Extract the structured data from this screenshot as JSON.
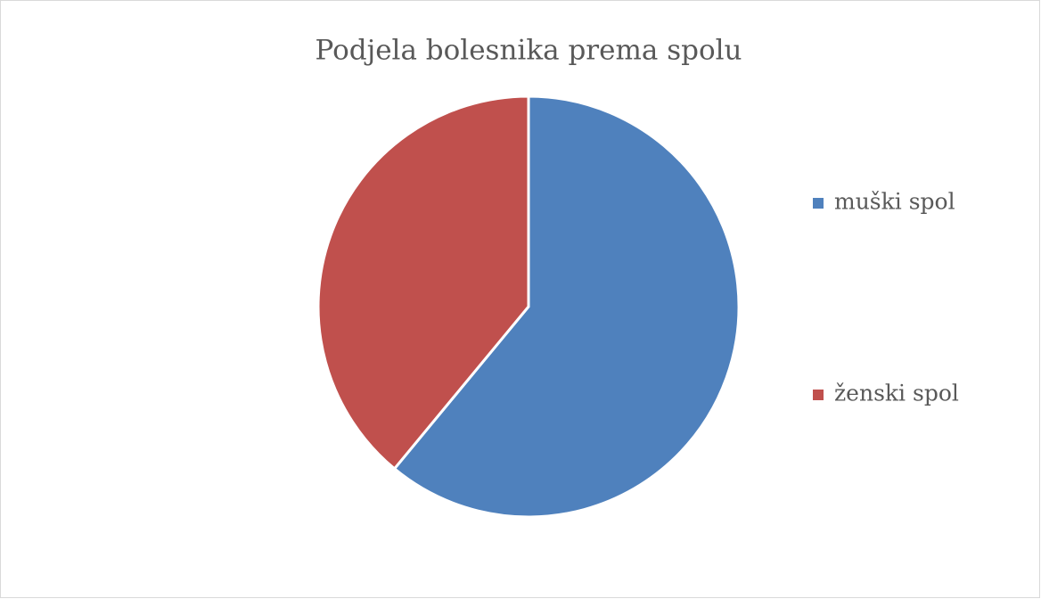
{
  "chart_data": {
    "type": "pie",
    "title": "Podjela bolesnika prema spolu",
    "categories": [
      "muški spol",
      "ženski spol"
    ],
    "values": [
      61,
      39
    ],
    "colors": [
      "#4f81bd",
      "#c0504d"
    ],
    "legend": "right"
  }
}
